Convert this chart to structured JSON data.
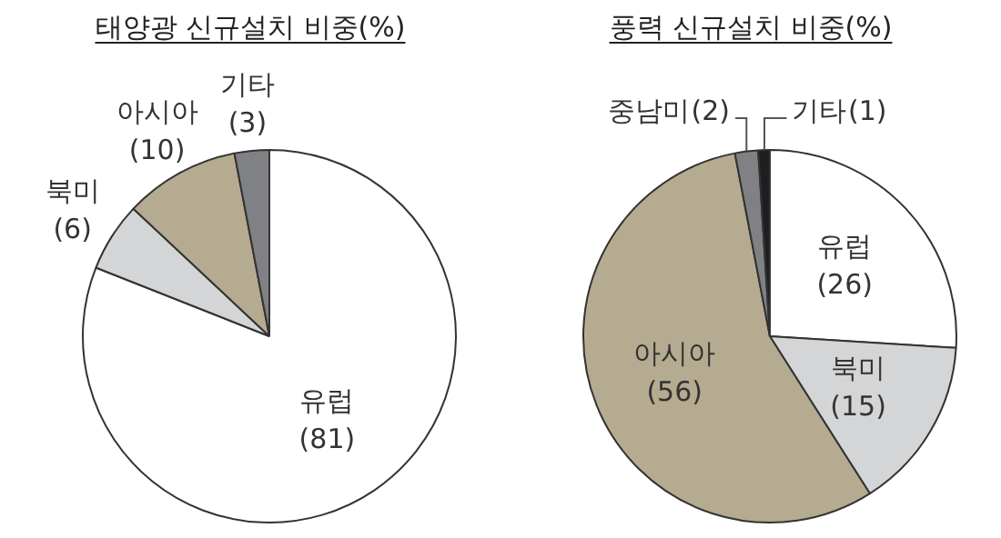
{
  "chart_data": [
    {
      "type": "pie",
      "title": "태양광 신규설치 비중(%)",
      "categories": [
        "유럽",
        "북미",
        "아시아",
        "기타"
      ],
      "values": [
        81,
        6,
        10,
        3
      ],
      "colors": [
        "#ffffff",
        "#d4d5d7",
        "#b5ab90",
        "#7f8185"
      ],
      "value_labels": [
        "(81)",
        "(6)",
        "(10)",
        "(3)"
      ]
    },
    {
      "type": "pie",
      "title": "풍력 신규설치 비중(%)",
      "categories": [
        "유럽",
        "북미",
        "아시아",
        "중남미",
        "기타"
      ],
      "values": [
        26,
        15,
        56,
        2,
        1
      ],
      "colors": [
        "#ffffff",
        "#d4d5d7",
        "#b5ab90",
        "#7f8185",
        "#1e1e1e"
      ],
      "value_labels": [
        "(26)",
        "(15)",
        "(56)",
        "(2)",
        "(1)"
      ]
    }
  ]
}
